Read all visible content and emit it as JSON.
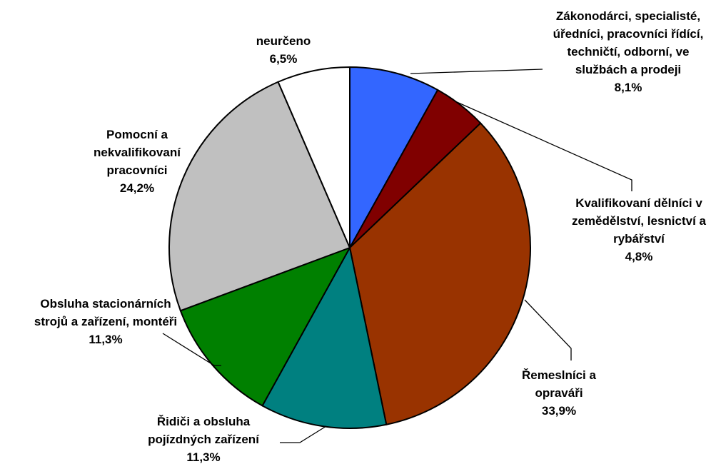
{
  "chart_data": {
    "type": "pie",
    "categories": [
      "Zákonodárci, specialisté, úředníci, pracovníci řídící, techničtí, odborní, ve službách a prodeji",
      "Kvalifikovaní dělníci v zemědělství, lesnictví a rybářství",
      "Řemeslníci a opraváři",
      "Řidiči a obsluha pojízdných zařízení",
      "Obsluha stacionárních strojů a zařízení, montéři",
      "Pomocní a nekvalifikovaní pracovníci",
      "neurčeno"
    ],
    "values": [
      8.1,
      4.8,
      33.9,
      11.3,
      11.3,
      24.2,
      6.5
    ],
    "value_labels": [
      "8,1%",
      "4,8%",
      "33,9%",
      "11,3%",
      "11,3%",
      "24,2%",
      "6,5%"
    ],
    "colors": [
      "#3366ff",
      "#800000",
      "#993300",
      "#008080",
      "#008000",
      "#c0c0c0",
      "#ffffff"
    ]
  }
}
